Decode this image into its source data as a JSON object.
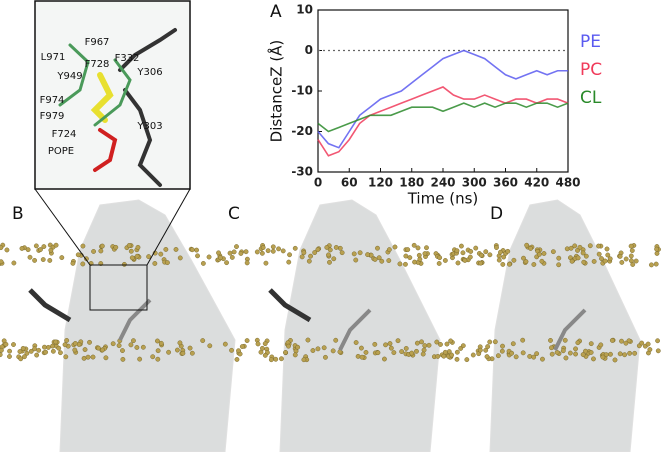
{
  "chart_data": {
    "type": "line",
    "panel_label": "A",
    "x_label": "Time (ns)",
    "y_label": "DistanceZ (Å)",
    "x": [
      0,
      20,
      40,
      60,
      80,
      100,
      120,
      140,
      160,
      180,
      200,
      220,
      240,
      260,
      280,
      300,
      320,
      340,
      360,
      380,
      400,
      420,
      440,
      460,
      480
    ],
    "series": [
      {
        "name": "PE",
        "color": "#5a5af0",
        "values": [
          -20,
          -23,
          -24,
          -20,
          -16,
          -14,
          -12,
          -11,
          -10,
          -8,
          -6,
          -4,
          -2,
          -1,
          0,
          -1,
          -2,
          -4,
          -6,
          -7,
          -6,
          -5,
          -6,
          -5,
          -5
        ]
      },
      {
        "name": "PC",
        "color": "#f03a5a",
        "values": [
          -22,
          -26,
          -25,
          -22,
          -18,
          -16,
          -15,
          -14,
          -13,
          -12,
          -11,
          -10,
          -9,
          -11,
          -12,
          -12,
          -11,
          -12,
          -13,
          -12,
          -12,
          -13,
          -12,
          -12,
          -13
        ]
      },
      {
        "name": "CL",
        "color": "#2a8a2a",
        "values": [
          -18,
          -20,
          -19,
          -18,
          -17,
          -16,
          -16,
          -16,
          -15,
          -14,
          -14,
          -14,
          -15,
          -14,
          -13,
          -14,
          -13,
          -14,
          -13,
          -13,
          -14,
          -13,
          -13,
          -14,
          -13
        ]
      }
    ],
    "reference_line": 0,
    "xlim": [
      0,
      480
    ],
    "xticks": [
      0,
      60,
      120,
      180,
      240,
      300,
      360,
      420,
      480
    ],
    "ylim": [
      -30,
      10
    ],
    "yticks": [
      -30,
      -20,
      -10,
      0,
      10
    ]
  },
  "panel_labels": [
    "B",
    "C",
    "D"
  ],
  "inset": {
    "labels": [
      "F967",
      "L971",
      "Y949",
      "F728",
      "F332",
      "Y306",
      "F974",
      "F979",
      "Y303",
      "F724",
      "POPE"
    ]
  }
}
